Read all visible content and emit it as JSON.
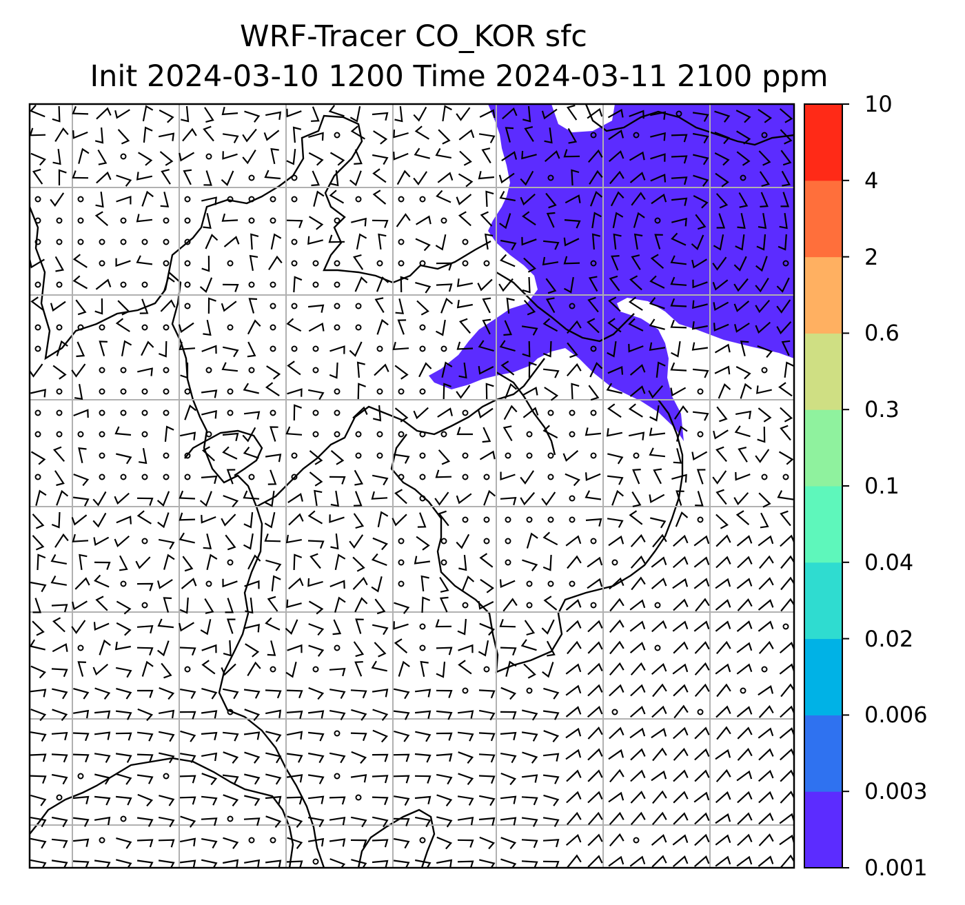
{
  "title": {
    "line1": "WRF-Tracer CO_KOR sfc",
    "line2": "Init 2024-03-10 1200 Time 2024-03-11 2100 ppm"
  },
  "colorbar": {
    "levels": [
      "0.001",
      "0.003",
      "0.006",
      "0.02",
      "0.04",
      "0.1",
      "0.3",
      "0.6",
      "2",
      "4",
      "10"
    ],
    "colors": [
      "#5c2cff",
      "#2f72f0",
      "#00b2e6",
      "#2fdcd0",
      "#5ef7bb",
      "#8ff29e",
      "#cfdf83",
      "#ffb061",
      "#ff6f3b",
      "#ff2a17"
    ]
  },
  "map": {
    "field": "CO_KOR",
    "level": "sfc",
    "unit": "ppm",
    "shaded_category": "0.001–0.003 ppm",
    "gridlines": true,
    "wind_barbs": true
  }
}
